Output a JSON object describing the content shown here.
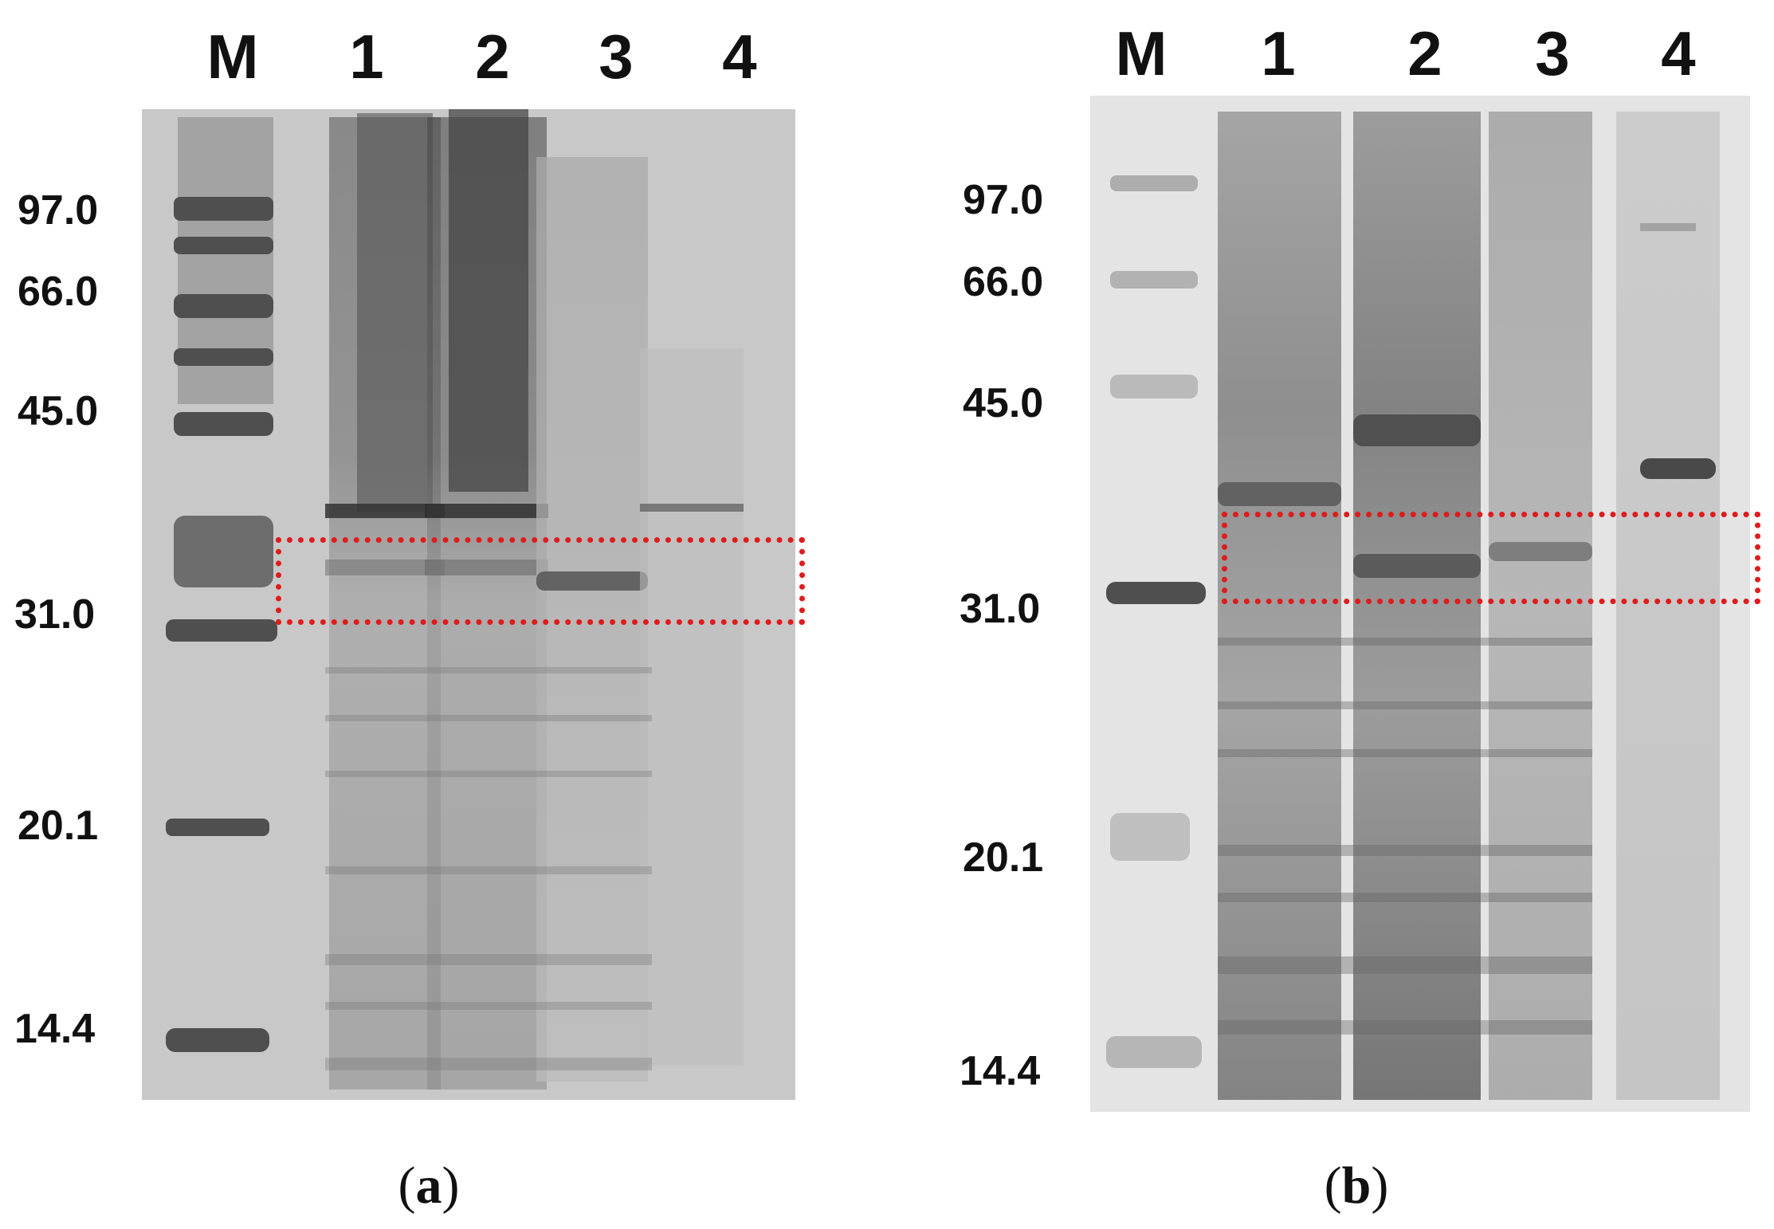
{
  "panels": [
    {
      "id": "a",
      "caption_open": "(",
      "caption_letter": "a",
      "caption_close": ")",
      "lanes": [
        "M",
        "1",
        "2",
        "3",
        "4"
      ],
      "mw_markers": [
        "97.0",
        "66.0",
        "45.0",
        "31.0",
        "20.1",
        "14.4"
      ],
      "highlight_color": "#e01b1b",
      "gel_color": "#c8c8c8"
    },
    {
      "id": "b",
      "caption_open": "(",
      "caption_letter": "b",
      "caption_close": ")",
      "lanes": [
        "M",
        "1",
        "2",
        "3",
        "4"
      ],
      "mw_markers": [
        "97.0",
        "66.0",
        "45.0",
        "31.0",
        "20.1",
        "14.4"
      ],
      "highlight_color": "#e01b1b",
      "gel_color": "#e4e4e4"
    }
  ]
}
